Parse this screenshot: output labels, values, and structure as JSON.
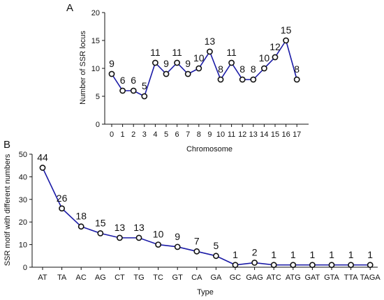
{
  "chart_data": [
    {
      "type": "line",
      "panel_label": "A",
      "title": "",
      "xlabel": "Chromosome",
      "ylabel": "Number of SSR locus",
      "categories": [
        "0",
        "1",
        "2",
        "3",
        "4",
        "5",
        "6",
        "7",
        "8",
        "9",
        "10",
        "11",
        "12",
        "13",
        "14",
        "15",
        "16",
        "17"
      ],
      "values": [
        9,
        6,
        6,
        5,
        11,
        9,
        11,
        9,
        10,
        13,
        8,
        11,
        8,
        8,
        10,
        12,
        15,
        8
      ],
      "ylim": [
        0,
        20
      ],
      "yticks": [
        0,
        5,
        10,
        15,
        20
      ],
      "grid": false,
      "line_color": "#1a1aa6"
    },
    {
      "type": "line",
      "panel_label": "B",
      "title": "",
      "xlabel": "Type",
      "ylabel": "SSR motif with different numbers",
      "categories": [
        "AT",
        "TA",
        "AC",
        "AG",
        "CT",
        "TG",
        "TC",
        "GT",
        "CA",
        "GA",
        "GC",
        "GAG",
        "ATC",
        "ATG",
        "GAT",
        "GTA",
        "TTA",
        "TAGA"
      ],
      "values": [
        44,
        26,
        18,
        15,
        13,
        13,
        10,
        9,
        7,
        5,
        1,
        2,
        1,
        1,
        1,
        1,
        1,
        1
      ],
      "ylim": [
        0,
        50
      ],
      "yticks": [
        0,
        10,
        20,
        30,
        40,
        50
      ],
      "grid": false,
      "line_color": "#1a1aa6"
    }
  ]
}
